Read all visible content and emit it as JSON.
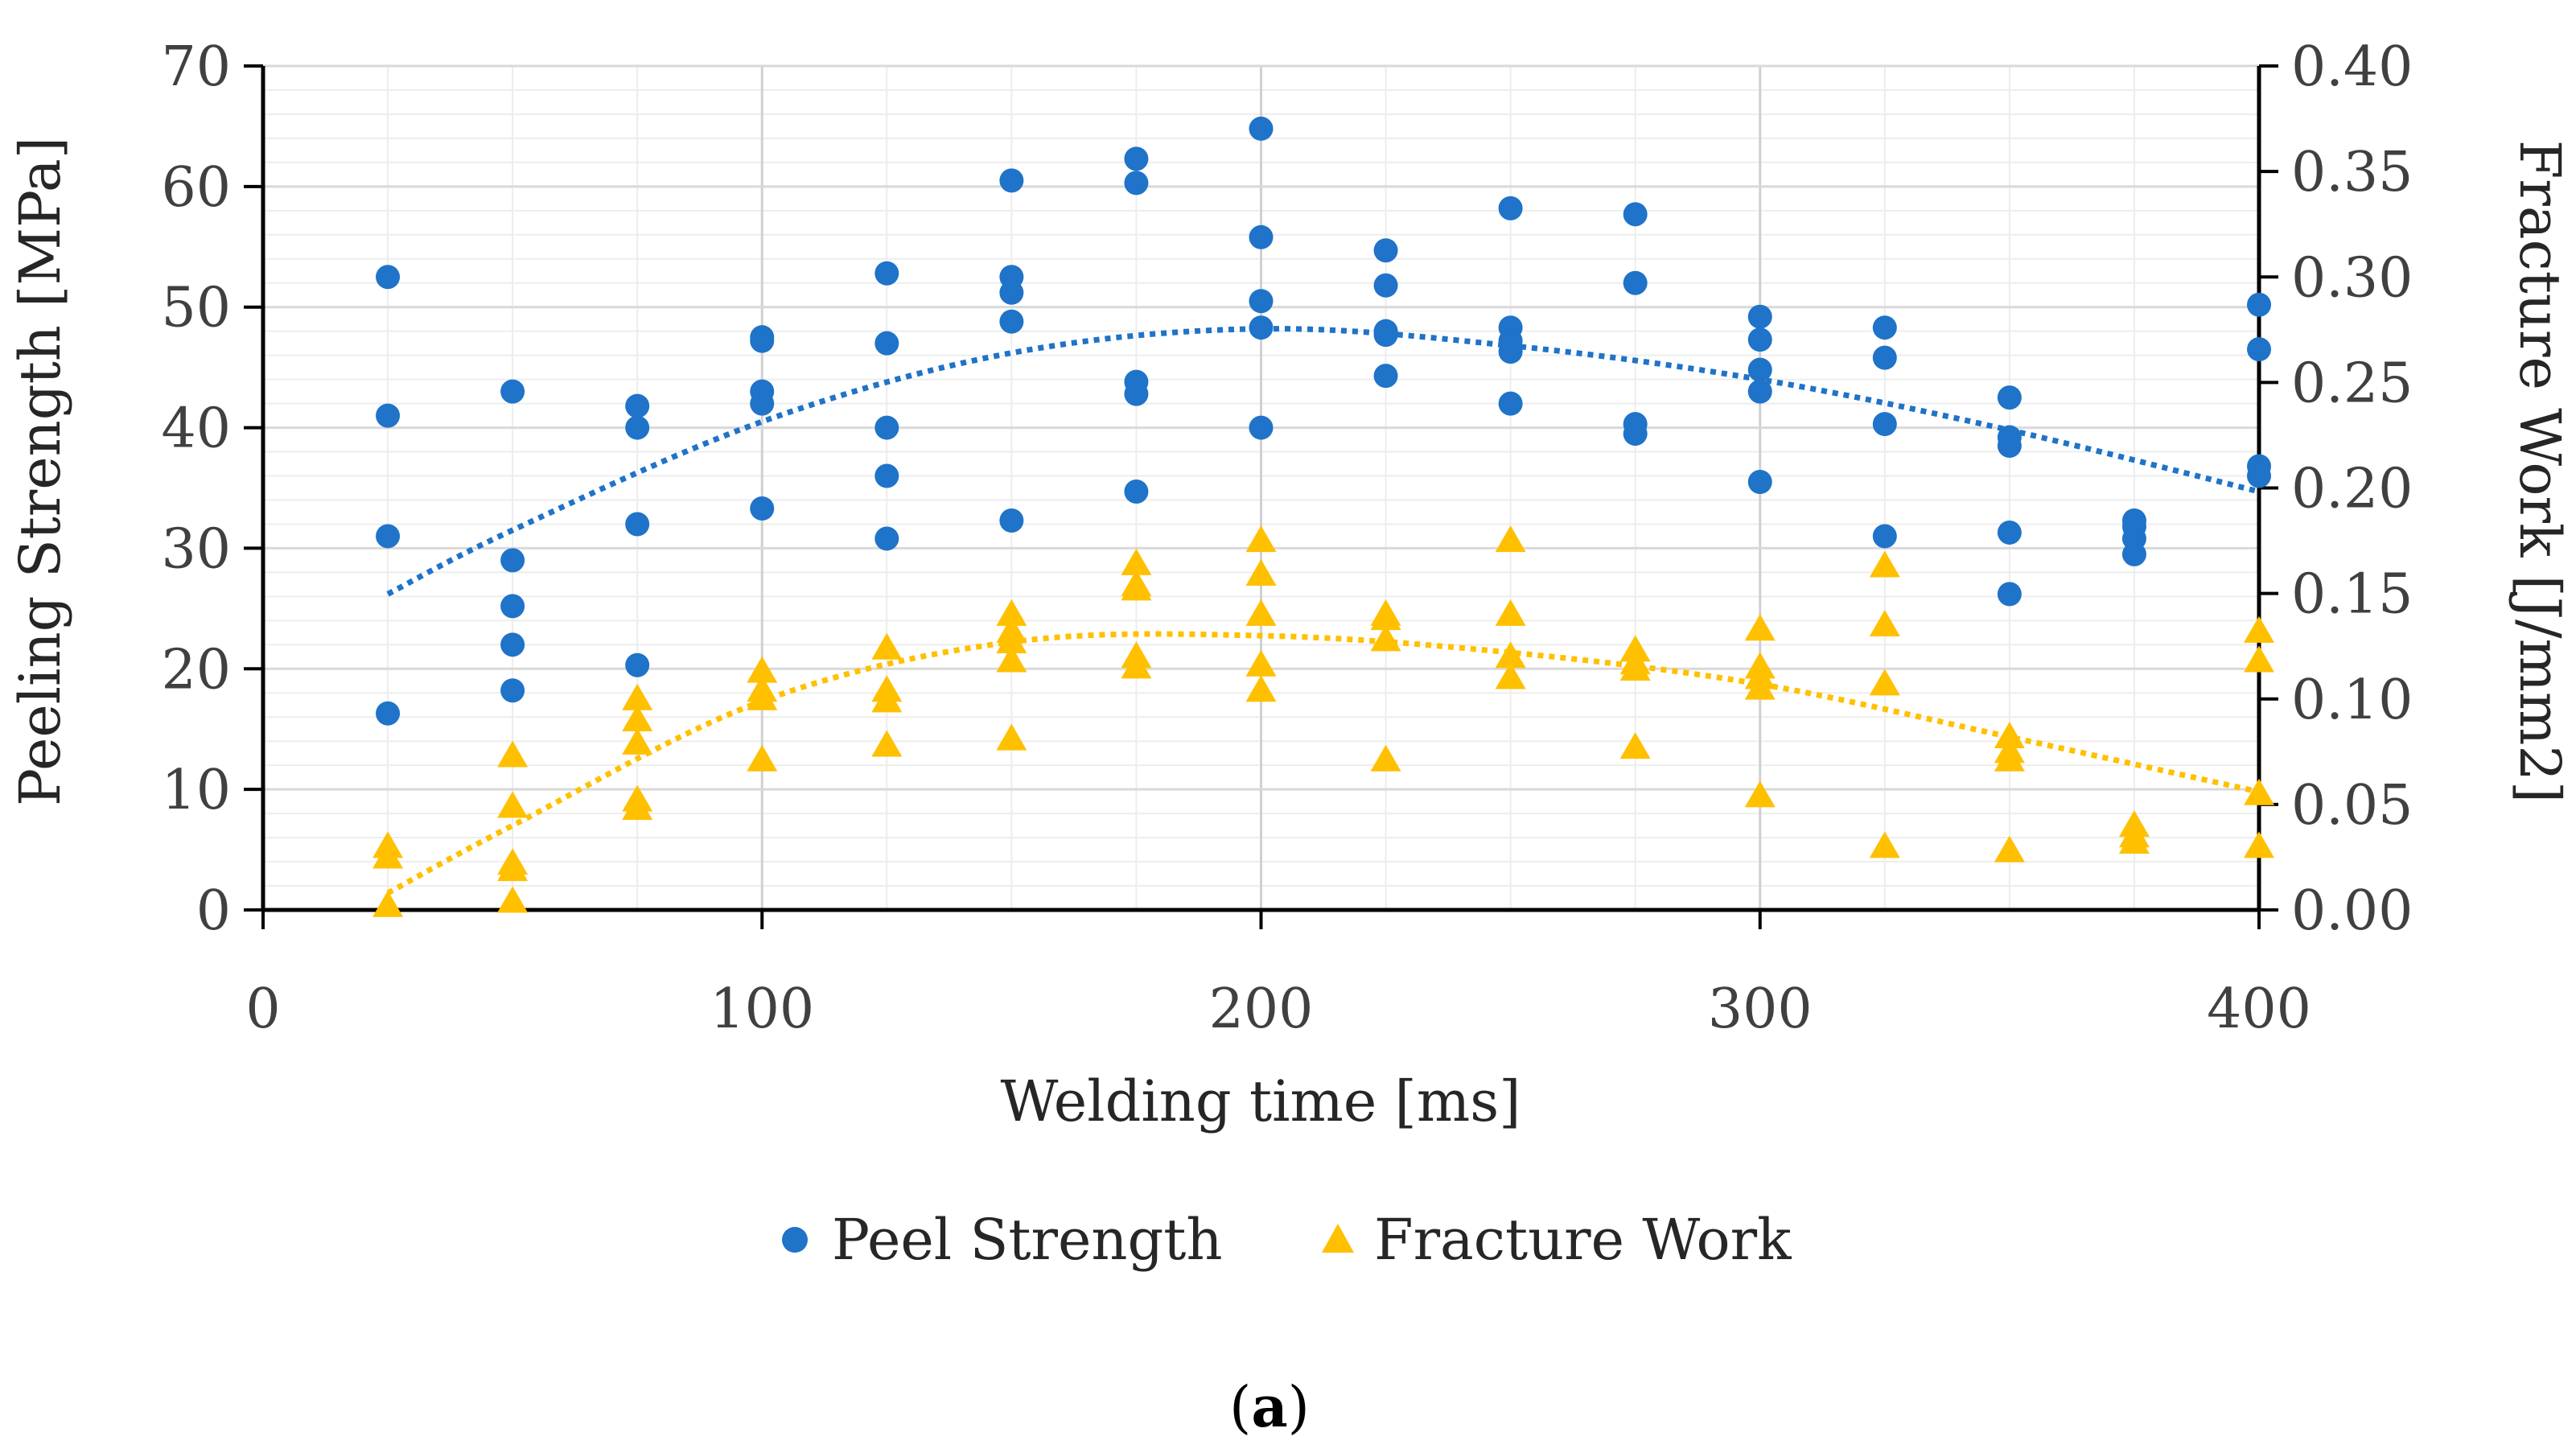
{
  "chart_data": {
    "type": "scatter",
    "xlabel": "Welding time [ms]",
    "ylabel": "Peeling Strength [MPa]",
    "y2label": "Fracture Work [J/mm2]",
    "xlim": [
      0,
      400
    ],
    "ylim": [
      0,
      70
    ],
    "y2lim": [
      0,
      0.4
    ],
    "x_ticks": [
      "0",
      "100",
      "200",
      "300",
      "400"
    ],
    "y_ticks": [
      "0",
      "10",
      "20",
      "30",
      "40",
      "50",
      "60",
      "70"
    ],
    "y2_ticks": [
      "0.00",
      "0.05",
      "0.10",
      "0.15",
      "0.20",
      "0.25",
      "0.30",
      "0.35",
      "0.40"
    ],
    "grid": true,
    "legend_position": "bottom",
    "caption": {
      "open": "(",
      "letter": "a",
      "close": ")"
    },
    "series": [
      {
        "name": "Peel Strength",
        "marker": "circle",
        "color": "#1F73C8",
        "axis": "left",
        "points": [
          [
            25,
            52.5
          ],
          [
            25,
            41.0
          ],
          [
            25,
            31.0
          ],
          [
            25,
            16.3
          ],
          [
            50,
            43.0
          ],
          [
            50,
            29.0
          ],
          [
            50,
            25.2
          ],
          [
            50,
            22.0
          ],
          [
            50,
            18.2
          ],
          [
            75,
            41.8
          ],
          [
            75,
            40.0
          ],
          [
            75,
            32.0
          ],
          [
            75,
            20.3
          ],
          [
            100,
            47.5
          ],
          [
            100,
            47.2
          ],
          [
            100,
            43.0
          ],
          [
            100,
            42.0
          ],
          [
            100,
            33.3
          ],
          [
            125,
            52.8
          ],
          [
            125,
            47.0
          ],
          [
            125,
            40.0
          ],
          [
            125,
            36.0
          ],
          [
            125,
            30.8
          ],
          [
            150,
            60.5
          ],
          [
            150,
            52.5
          ],
          [
            150,
            51.2
          ],
          [
            150,
            48.8
          ],
          [
            150,
            32.3
          ],
          [
            175,
            62.3
          ],
          [
            175,
            60.3
          ],
          [
            175,
            43.8
          ],
          [
            175,
            42.8
          ],
          [
            175,
            34.7
          ],
          [
            200,
            64.8
          ],
          [
            200,
            55.8
          ],
          [
            200,
            50.5
          ],
          [
            200,
            48.3
          ],
          [
            200,
            40.0
          ],
          [
            225,
            54.7
          ],
          [
            225,
            51.8
          ],
          [
            225,
            48.0
          ],
          [
            225,
            47.7
          ],
          [
            225,
            44.3
          ],
          [
            250,
            58.2
          ],
          [
            250,
            48.3
          ],
          [
            250,
            47.2
          ],
          [
            250,
            46.3
          ],
          [
            250,
            42.0
          ],
          [
            275,
            57.7
          ],
          [
            275,
            52.0
          ],
          [
            275,
            40.3
          ],
          [
            275,
            39.5
          ],
          [
            300,
            49.2
          ],
          [
            300,
            47.3
          ],
          [
            300,
            44.8
          ],
          [
            300,
            43.0
          ],
          [
            300,
            35.5
          ],
          [
            325,
            48.3
          ],
          [
            325,
            45.8
          ],
          [
            325,
            40.3
          ],
          [
            325,
            31.0
          ],
          [
            350,
            42.5
          ],
          [
            350,
            39.2
          ],
          [
            350,
            38.5
          ],
          [
            350,
            31.3
          ],
          [
            350,
            26.2
          ],
          [
            375,
            32.3
          ],
          [
            375,
            31.8
          ],
          [
            375,
            30.8
          ],
          [
            375,
            29.5
          ],
          [
            400,
            50.2
          ],
          [
            400,
            46.5
          ],
          [
            400,
            36.8
          ],
          [
            400,
            36.0
          ]
        ],
        "trendline": {
          "style": "dotted",
          "x_range": [
            25,
            400
          ],
          "x": [
            25,
            50,
            100,
            150,
            200,
            250,
            300,
            350,
            400
          ],
          "y": [
            26.2,
            31.5,
            40.5,
            46.2,
            48.2,
            46.8,
            44.0,
            39.8,
            34.7
          ]
        }
      },
      {
        "name": "Fracture Work",
        "marker": "triangle",
        "color": "#FFC000",
        "axis": "right",
        "points": [
          [
            25,
            0.03
          ],
          [
            25,
            0.025
          ],
          [
            25,
            0.002
          ],
          [
            50,
            0.073
          ],
          [
            50,
            0.049
          ],
          [
            50,
            0.022
          ],
          [
            50,
            0.019
          ],
          [
            50,
            0.004
          ],
          [
            75,
            0.1
          ],
          [
            75,
            0.09
          ],
          [
            75,
            0.079
          ],
          [
            75,
            0.052
          ],
          [
            75,
            0.048
          ],
          [
            100,
            0.113
          ],
          [
            100,
            0.104
          ],
          [
            100,
            0.1
          ],
          [
            100,
            0.071
          ],
          [
            125,
            0.124
          ],
          [
            125,
            0.104
          ],
          [
            125,
            0.099
          ],
          [
            125,
            0.078
          ],
          [
            150,
            0.14
          ],
          [
            150,
            0.132
          ],
          [
            150,
            0.127
          ],
          [
            150,
            0.118
          ],
          [
            150,
            0.081
          ],
          [
            175,
            0.164
          ],
          [
            175,
            0.154
          ],
          [
            175,
            0.152
          ],
          [
            175,
            0.12
          ],
          [
            175,
            0.115
          ],
          [
            200,
            0.175
          ],
          [
            200,
            0.159
          ],
          [
            200,
            0.14
          ],
          [
            200,
            0.116
          ],
          [
            200,
            0.104
          ],
          [
            225,
            0.14
          ],
          [
            225,
            0.138
          ],
          [
            225,
            0.128
          ],
          [
            225,
            0.071
          ],
          [
            250,
            0.175
          ],
          [
            250,
            0.14
          ],
          [
            250,
            0.12
          ],
          [
            250,
            0.11
          ],
          [
            275,
            0.123
          ],
          [
            275,
            0.117
          ],
          [
            275,
            0.114
          ],
          [
            275,
            0.077
          ],
          [
            300,
            0.133
          ],
          [
            300,
            0.115
          ],
          [
            300,
            0.11
          ],
          [
            300,
            0.105
          ],
          [
            300,
            0.054
          ],
          [
            325,
            0.163
          ],
          [
            325,
            0.135
          ],
          [
            325,
            0.107
          ],
          [
            325,
            0.03
          ],
          [
            350,
            0.082
          ],
          [
            350,
            0.075
          ],
          [
            350,
            0.071
          ],
          [
            350,
            0.028
          ],
          [
            375,
            0.04
          ],
          [
            375,
            0.035
          ],
          [
            375,
            0.032
          ],
          [
            400,
            0.132
          ],
          [
            400,
            0.118
          ],
          [
            400,
            0.055
          ],
          [
            400,
            0.03
          ]
        ],
        "trendline": {
          "style": "dotted",
          "x_range": [
            25,
            400
          ],
          "x": [
            25,
            50,
            100,
            150,
            200,
            250,
            300,
            350,
            400
          ],
          "y": [
            0.008,
            0.04,
            0.099,
            0.127,
            0.13,
            0.122,
            0.107,
            0.082,
            0.056
          ]
        }
      }
    ]
  }
}
